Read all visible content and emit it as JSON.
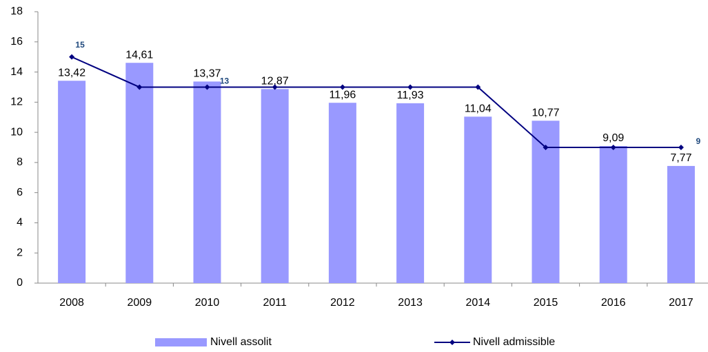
{
  "chart_data": {
    "type": "bar-line",
    "categories": [
      "2008",
      "2009",
      "2010",
      "2011",
      "2012",
      "2013",
      "2014",
      "2015",
      "2016",
      "2017"
    ],
    "series": [
      {
        "name": "Nivell assolit",
        "type": "bar",
        "color": "#9999ff",
        "values": [
          13.42,
          14.61,
          13.37,
          12.87,
          11.96,
          11.93,
          11.04,
          10.77,
          9.09,
          7.77
        ],
        "value_labels": [
          "13,42",
          "14,61",
          "13,37",
          "12,87",
          "11,96",
          "11,93",
          "11,04",
          "10,77",
          "9,09",
          "7,77"
        ]
      },
      {
        "name": "Nivell admissible",
        "type": "line",
        "color": "#000080",
        "values": [
          15,
          13,
          13,
          13,
          13,
          13,
          13,
          9,
          9,
          9
        ],
        "value_labels": [
          "15",
          null,
          "13",
          null,
          null,
          null,
          null,
          null,
          null,
          "9"
        ]
      }
    ],
    "ylim": [
      0,
      18
    ],
    "yticks": [
      0,
      2,
      4,
      6,
      8,
      10,
      12,
      14,
      16,
      18
    ],
    "grid": false,
    "legend": "bottom"
  }
}
